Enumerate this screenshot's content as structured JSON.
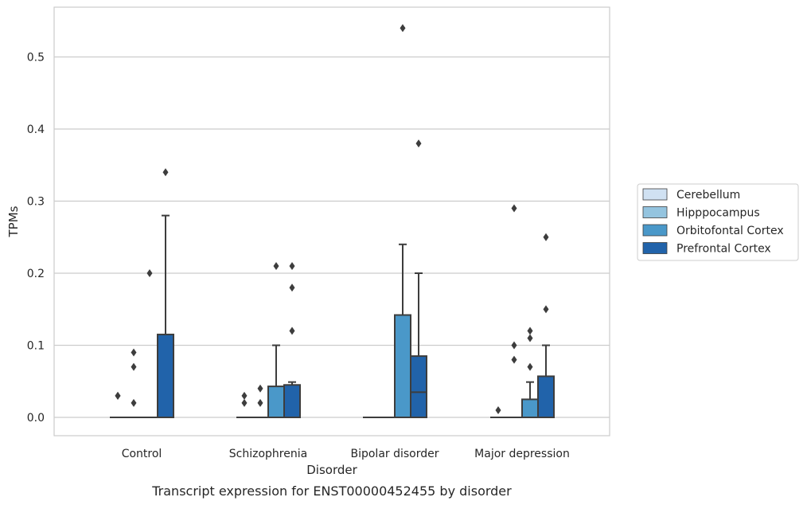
{
  "chart_data": {
    "type": "box",
    "xlabel": "Disorder",
    "ylabel": "TPMs",
    "caption": "Transcript expression for ENST00000452455 by disorder",
    "categories": [
      "Control",
      "Schizophrenia",
      "Bipolar disorder",
      "Major depression"
    ],
    "ylim": [
      -0.026,
      0.567
    ],
    "yticks": [
      "0.0",
      "0.1",
      "0.2",
      "0.3",
      "0.4",
      "0.5"
    ],
    "ytick_values": [
      0.0,
      0.1,
      0.2,
      0.3,
      0.4,
      0.5
    ],
    "grid": "horizontal",
    "legend_position": "right",
    "series": [
      {
        "name": "Cerebellum",
        "color": "#d0e1f2",
        "boxes": [
          {
            "q1": 0,
            "median": 0,
            "q3": 0,
            "whisker_low": 0,
            "whisker_high": 0,
            "outliers": [
              0.03,
              0.03
            ]
          },
          {
            "q1": 0,
            "median": 0,
            "q3": 0,
            "whisker_low": 0,
            "whisker_high": 0,
            "outliers": [
              0.02,
              0.03
            ]
          },
          {
            "q1": 0,
            "median": 0,
            "q3": 0,
            "whisker_low": 0,
            "whisker_high": 0,
            "outliers": []
          },
          {
            "q1": 0,
            "median": 0,
            "q3": 0,
            "whisker_low": 0,
            "whisker_high": 0,
            "outliers": [
              0.01
            ]
          }
        ]
      },
      {
        "name": "Hipppocampus",
        "color": "#94c4df",
        "boxes": [
          {
            "q1": 0,
            "median": 0,
            "q3": 0,
            "whisker_low": 0,
            "whisker_high": 0,
            "outliers": [
              0.02,
              0.07,
              0.09
            ]
          },
          {
            "q1": 0,
            "median": 0,
            "q3": 0,
            "whisker_low": 0,
            "whisker_high": 0,
            "outliers": [
              0.02,
              0.04
            ]
          },
          {
            "q1": 0,
            "median": 0,
            "q3": 0,
            "whisker_low": 0,
            "whisker_high": 0,
            "outliers": []
          },
          {
            "q1": 0,
            "median": 0,
            "q3": 0,
            "whisker_low": 0,
            "whisker_high": 0,
            "outliers": [
              0.08,
              0.1,
              0.29
            ]
          }
        ]
      },
      {
        "name": "Orbitofontal Cortex",
        "color": "#4a98c9",
        "boxes": [
          {
            "q1": 0,
            "median": 0,
            "q3": 0,
            "whisker_low": 0,
            "whisker_high": 0,
            "outliers": [
              0.2
            ]
          },
          {
            "q1": 0,
            "median": 0,
            "q3": 0.043,
            "whisker_low": 0,
            "whisker_high": 0.1,
            "outliers": [
              0.21
            ]
          },
          {
            "q1": 0,
            "median": 0,
            "q3": 0.142,
            "whisker_low": 0,
            "whisker_high": 0.24,
            "outliers": [
              0.54
            ]
          },
          {
            "q1": 0,
            "median": 0,
            "q3": 0.025,
            "whisker_low": 0,
            "whisker_high": 0.049,
            "outliers": [
              0.07,
              0.11,
              0.12
            ]
          }
        ]
      },
      {
        "name": "Prefrontal Cortex",
        "color": "#2163aa",
        "boxes": [
          {
            "q1": 0,
            "median": 0,
            "q3": 0.115,
            "whisker_low": 0,
            "whisker_high": 0.28,
            "outliers": [
              0.34
            ]
          },
          {
            "q1": 0,
            "median": 0,
            "q3": 0.045,
            "whisker_low": 0,
            "whisker_high": 0.049,
            "outliers": [
              0.12,
              0.18,
              0.21
            ]
          },
          {
            "q1": 0,
            "median": 0.035,
            "q3": 0.085,
            "whisker_low": 0,
            "whisker_high": 0.2,
            "outliers": [
              0.38
            ]
          },
          {
            "q1": 0,
            "median": 0,
            "q3": 0.057,
            "whisker_low": 0,
            "whisker_high": 0.1,
            "outliers": [
              0.15,
              0.25
            ]
          }
        ]
      }
    ]
  }
}
